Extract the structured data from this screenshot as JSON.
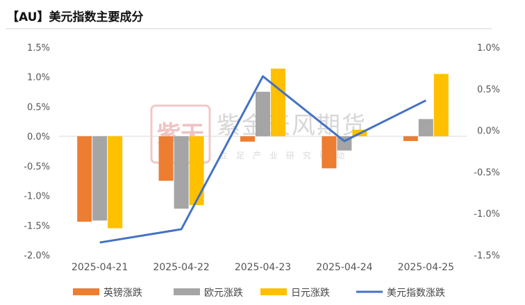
{
  "header": {
    "title": "【AU】美元指数主要成分"
  },
  "watermark": {
    "brand": "紫金天风期货",
    "slogan": "立足产业研究驱动",
    "seal_text": "紫天",
    "seal_color": "#e8a0a0"
  },
  "chart_data": {
    "type": "bar",
    "categories": [
      "2025-04-21",
      "2025-04-22",
      "2025-04-23",
      "2025-04-24",
      "2025-04-25"
    ],
    "series": [
      {
        "name": "英镑涨跌",
        "type": "bar",
        "axis": "left",
        "color": "#ED7D31",
        "values": [
          -1.44,
          -0.75,
          -0.09,
          -0.54,
          -0.08
        ]
      },
      {
        "name": "欧元涨跌",
        "type": "bar",
        "axis": "left",
        "color": "#A5A5A5",
        "values": [
          -1.42,
          -1.22,
          0.75,
          -0.24,
          0.29
        ]
      },
      {
        "name": "日元涨跌",
        "type": "bar",
        "axis": "left",
        "color": "#FFC000",
        "values": [
          -1.55,
          -1.16,
          1.14,
          0.11,
          1.05
        ]
      },
      {
        "name": "美元指数涨跌",
        "type": "line",
        "axis": "right",
        "color": "#4472C4",
        "values": [
          -1.35,
          -1.19,
          0.65,
          -0.13,
          0.36
        ]
      }
    ],
    "y_left": {
      "min": -2.0,
      "max": 1.5,
      "step": 0.5,
      "ticks": [
        "-2.0%",
        "-1.5%",
        "-1.0%",
        "-0.5%",
        "0.0%",
        "0.5%",
        "1.0%",
        "1.5%"
      ]
    },
    "y_right": {
      "min": -1.5,
      "max": 1.0,
      "step": 0.5,
      "ticks": [
        "-1.5%",
        "-1.0%",
        "-0.5%",
        "0.0%",
        "0.5%",
        "1.0%"
      ]
    },
    "legend_position": "bottom",
    "grid": false
  }
}
